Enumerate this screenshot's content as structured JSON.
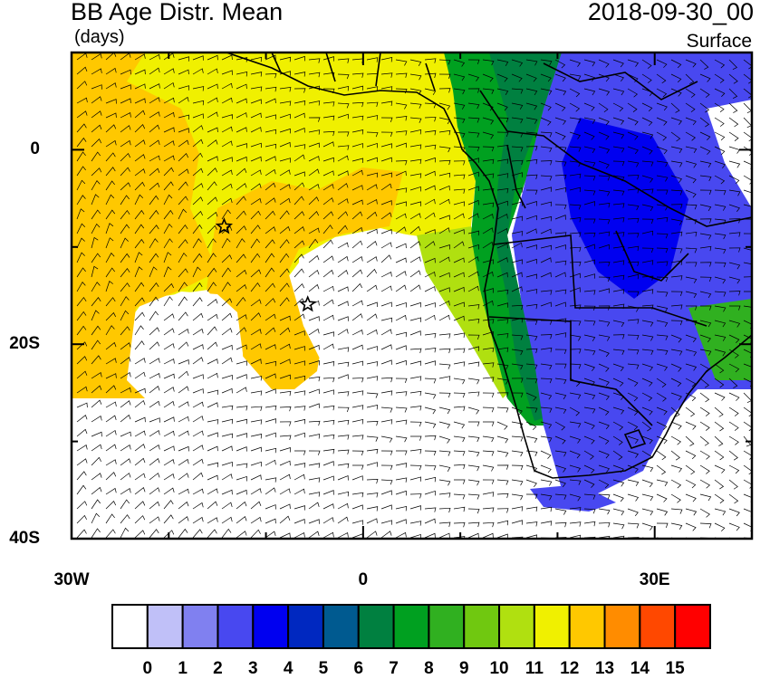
{
  "header": {
    "title": "BB Age Distr. Mean",
    "units": "(days)",
    "datetime": "2018-09-30_00",
    "level": "Surface"
  },
  "axes": {
    "y_labels": [
      {
        "id": "lat-0",
        "text": "0",
        "lat": 0
      },
      {
        "id": "lat-20s",
        "text": "20S",
        "lat": -20
      },
      {
        "id": "lat-40s",
        "text": "40S",
        "lat": -40
      }
    ],
    "x_labels": [
      {
        "id": "lon-30w",
        "text": "30W",
        "lon": -30
      },
      {
        "id": "lon-0",
        "text": "0",
        "lon": 0
      },
      {
        "id": "lon-30e",
        "text": "30E",
        "lon": 30
      }
    ],
    "lon_range": [
      -30,
      40
    ],
    "lat_range": [
      -40,
      10
    ]
  },
  "colorbar": {
    "colors": [
      "#ffffff",
      "#c0c0f8",
      "#8080f0",
      "#4848f0",
      "#0000f0",
      "#0028c0",
      "#005a90",
      "#008040",
      "#00a020",
      "#30b020",
      "#70c810",
      "#b0e010",
      "#f0f000",
      "#ffc800",
      "#ff8c00",
      "#ff4800",
      "#ff0000"
    ],
    "labels": [
      "0",
      "1",
      "2",
      "3",
      "4",
      "5",
      "6",
      "7",
      "8",
      "9",
      "10",
      "11",
      "12",
      "13",
      "14",
      "15"
    ]
  },
  "markers": [
    {
      "name": "star-marker-1",
      "lon": -14.3,
      "lat": -7.9
    },
    {
      "name": "star-marker-2",
      "lon": -5.7,
      "lat": -15.9
    }
  ]
}
